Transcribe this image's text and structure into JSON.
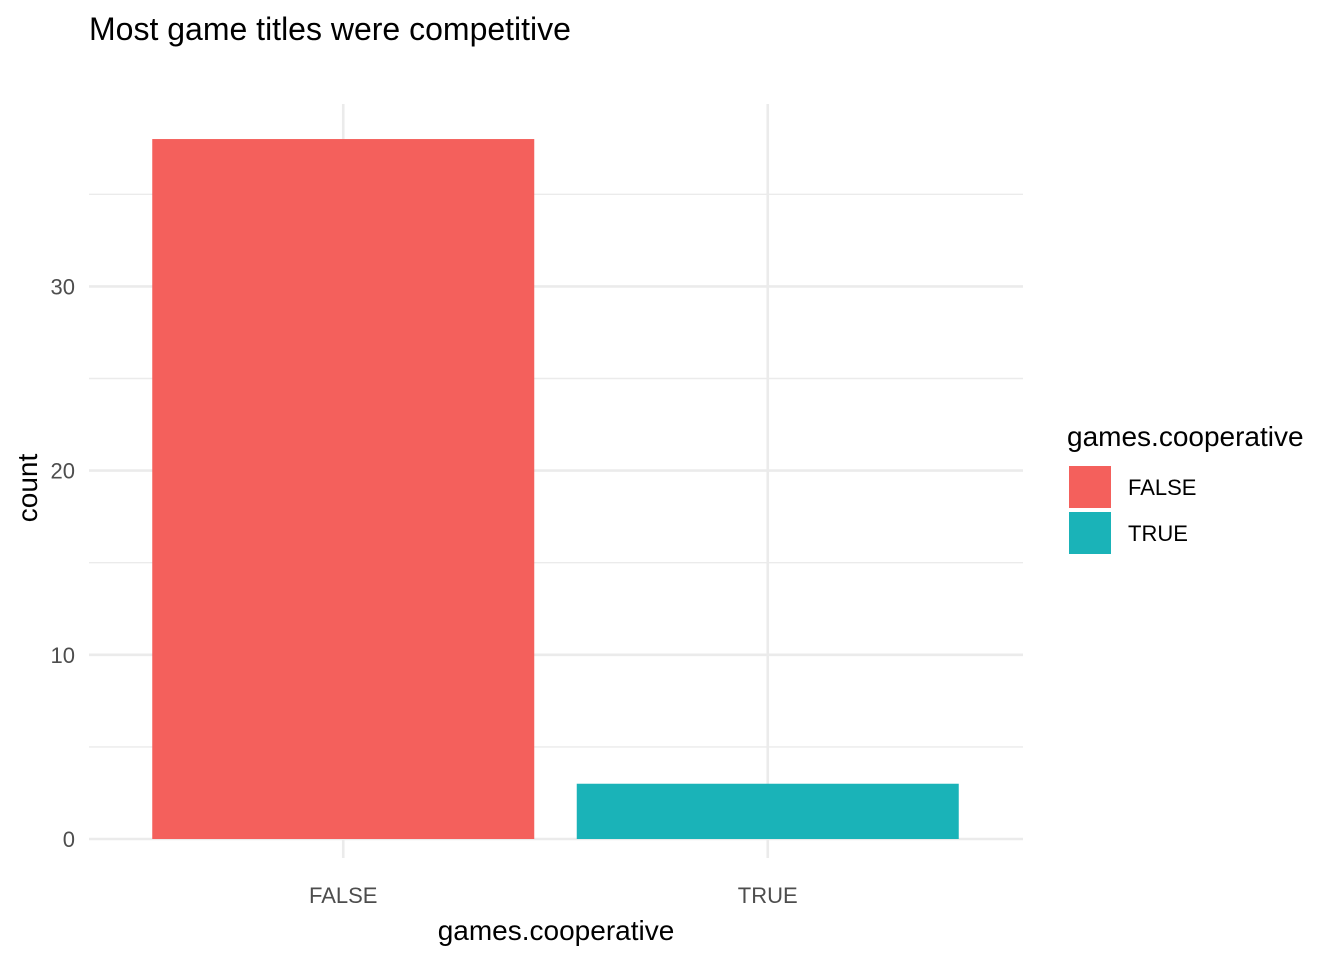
{
  "chart_data": {
    "type": "bar",
    "title": "Most game titles were competitive",
    "xlabel": "games.cooperative",
    "ylabel": "count",
    "categories": [
      "FALSE",
      "TRUE"
    ],
    "values": [
      38,
      3
    ],
    "colors": [
      "#F4605C",
      "#1AB3B8"
    ],
    "ylim": [
      0,
      40
    ],
    "yticks": [
      0,
      10,
      20,
      30
    ],
    "ytick_labels": [
      "0",
      "10",
      "20",
      "30"
    ],
    "grid": true,
    "legend": {
      "title": "games.cooperative",
      "position": "right",
      "entries": [
        {
          "label": "FALSE",
          "color": "#F4605C"
        },
        {
          "label": "TRUE",
          "color": "#1AB3B8"
        }
      ]
    }
  }
}
